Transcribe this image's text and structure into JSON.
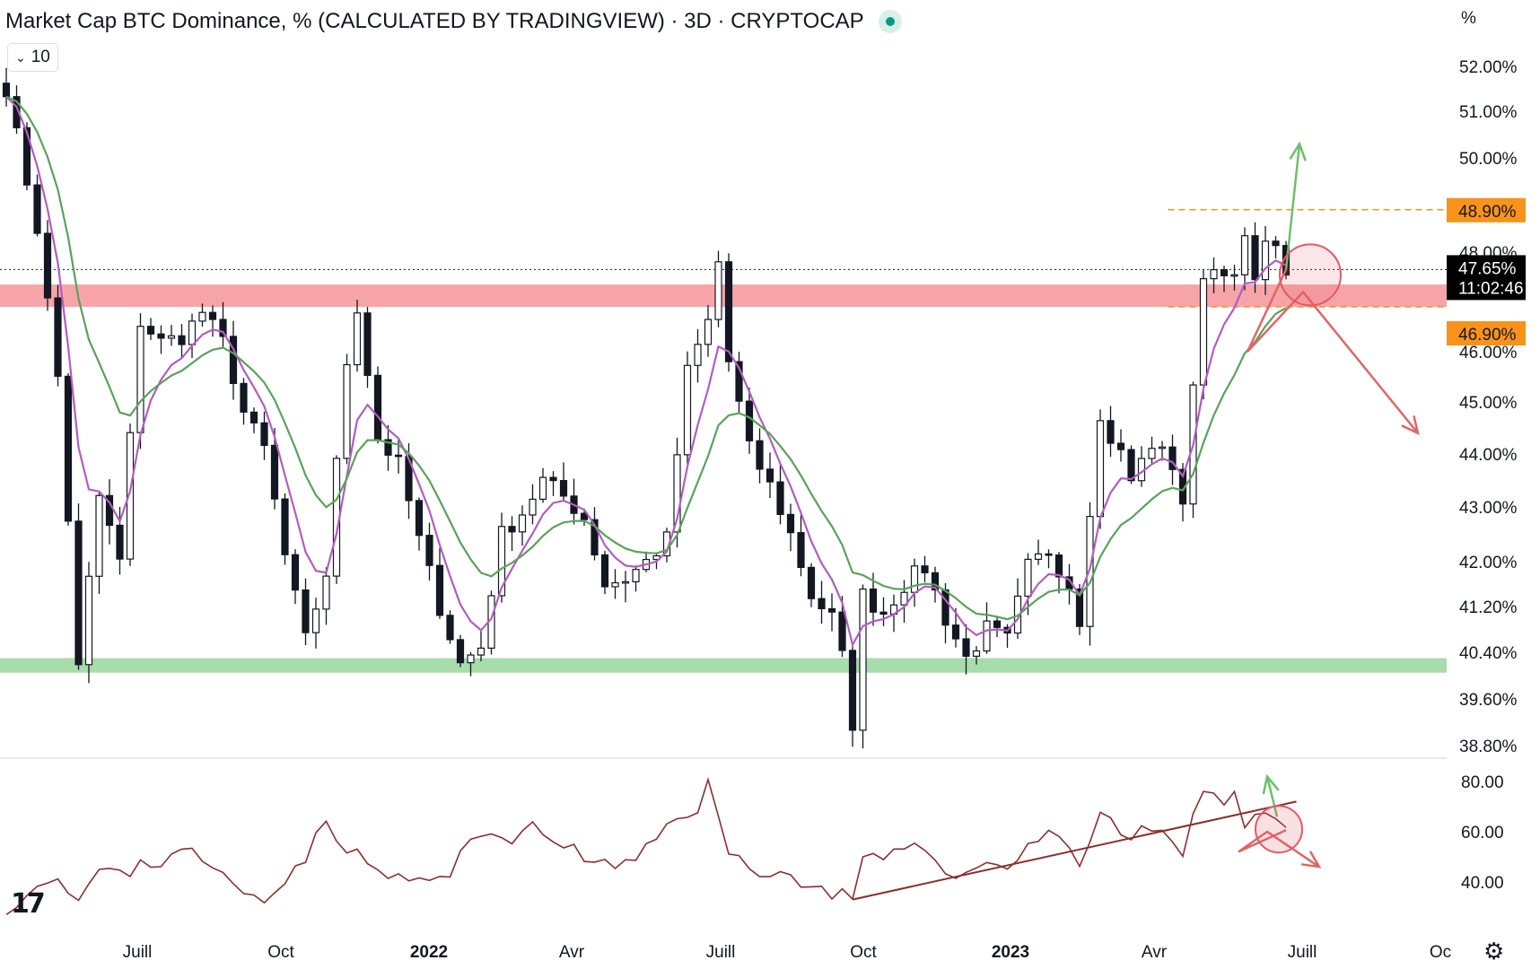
{
  "header": {
    "title": "Market Cap BTC Dominance, % (CALCULATED BY TRADINGVIEW) · 3D · CRYPTOCAP",
    "collapse_label": "10",
    "unit": "%"
  },
  "price_axis": {
    "ticks": [
      "52.00%",
      "51.00%",
      "50.00%",
      "48.00%",
      "46.00%",
      "45.00%",
      "44.00%",
      "43.00%",
      "42.00%",
      "41.20%",
      "40.40%",
      "39.60%",
      "38.80%"
    ]
  },
  "badges": {
    "top_level": "48.90%",
    "last_price": "47.65%",
    "countdown": "11:02:46",
    "bottom_level": "46.90%"
  },
  "rsi_axis": {
    "ticks": [
      "80.00",
      "60.00",
      "40.00"
    ]
  },
  "time_axis": {
    "labels": [
      "Juill",
      "Oct",
      "2022",
      "Avr",
      "Juill",
      "Oct",
      "2023",
      "Avr",
      "Juill",
      "Oc"
    ],
    "bold": [
      false,
      false,
      true,
      false,
      false,
      false,
      true,
      false,
      false,
      false
    ]
  },
  "colors": {
    "up_candle": "#131722",
    "down_candle": "#131722",
    "fast_ma": "#b05ec0",
    "slow_ma": "#5aa25a",
    "resistance_zone": "#f7a4a8",
    "support_zone": "#a8dcaa",
    "level_line": "#f7931a",
    "rsi_line": "#8b2e2e",
    "bull_arrow": "#6cc06c",
    "bear_arrow": "#e06666",
    "highlight_circle": "#e05a66"
  },
  "chart_data": [
    {
      "type": "candlestick",
      "title": "Market Cap BTC Dominance, % (CALCULATED BY TRADINGVIEW) · 3D · CRYPTOCAP",
      "timeframe": "3D",
      "xlabels": [
        "Juill",
        "Oct",
        "2022",
        "Avr",
        "Juill",
        "Oct",
        "2023",
        "Avr",
        "Juill",
        "Oc"
      ],
      "ylim": [
        38.8,
        52.4
      ],
      "y_ticks": [
        52.0,
        51.0,
        50.0,
        48.0,
        46.0,
        45.0,
        44.0,
        43.0,
        42.0,
        41.2,
        40.4,
        39.6,
        38.8
      ],
      "last_price": 47.65,
      "levels": {
        "top": 48.9,
        "bottom": 46.9
      },
      "zones": {
        "resistance": [
          46.9,
          47.35
        ],
        "support": [
          40.05,
          40.3
        ]
      },
      "close_path": [
        [
          0,
          51.5
        ],
        [
          3,
          48.5
        ],
        [
          5,
          45.5
        ],
        [
          7,
          40.1
        ],
        [
          9,
          43.2
        ],
        [
          11,
          42.0
        ],
        [
          13,
          46.6
        ],
        [
          15,
          46.2
        ],
        [
          17,
          46.3
        ],
        [
          19,
          46.8
        ],
        [
          21,
          46.2
        ],
        [
          23,
          44.8
        ],
        [
          25,
          44.1
        ],
        [
          27,
          42.1
        ],
        [
          29,
          40.6
        ],
        [
          31,
          41.8
        ],
        [
          33,
          45.8
        ],
        [
          34,
          46.9
        ],
        [
          36,
          44.3
        ],
        [
          38,
          43.8
        ],
        [
          40,
          42.4
        ],
        [
          42,
          41.2
        ],
        [
          44,
          40.2
        ],
        [
          46,
          40.5
        ],
        [
          48,
          42.5
        ],
        [
          50,
          42.9
        ],
        [
          52,
          43.5
        ],
        [
          54,
          43.2
        ],
        [
          56,
          42.8
        ],
        [
          58,
          41.6
        ],
        [
          60,
          41.7
        ],
        [
          62,
          42.0
        ],
        [
          64,
          42.4
        ],
        [
          66,
          45.6
        ],
        [
          68,
          46.6
        ],
        [
          69,
          47.8
        ],
        [
          70,
          45.8
        ],
        [
          72,
          44.1
        ],
        [
          74,
          43.4
        ],
        [
          76,
          42.5
        ],
        [
          78,
          41.4
        ],
        [
          80,
          41.0
        ],
        [
          81,
          40.3
        ],
        [
          82,
          39.2
        ],
        [
          83,
          41.4
        ],
        [
          85,
          41.1
        ],
        [
          87,
          41.6
        ],
        [
          89,
          41.9
        ],
        [
          91,
          41.0
        ],
        [
          93,
          40.3
        ],
        [
          95,
          40.8
        ],
        [
          97,
          40.6
        ],
        [
          99,
          41.9
        ],
        [
          101,
          42.2
        ],
        [
          103,
          41.6
        ],
        [
          104,
          41.0
        ],
        [
          105,
          43.0
        ],
        [
          106,
          44.6
        ],
        [
          108,
          44.0
        ],
        [
          109,
          43.5
        ],
        [
          111,
          44.2
        ],
        [
          113,
          43.8
        ],
        [
          114,
          43.1
        ],
        [
          115,
          45.2
        ],
        [
          116,
          47.6
        ],
        [
          118,
          47.7
        ],
        [
          119,
          47.4
        ],
        [
          120,
          48.3
        ],
        [
          121,
          47.3
        ],
        [
          122,
          48.4
        ],
        [
          123,
          48.0
        ],
        [
          124,
          47.65
        ]
      ],
      "annotations": {
        "bull_scenario_target": 50.3,
        "bear_scenario_path": [
          47.65,
          46.0,
          47.2,
          44.4
        ]
      }
    },
    {
      "type": "line",
      "name": "RSI",
      "ylim": [
        30,
        85
      ],
      "y_ticks": [
        80,
        60,
        40
      ],
      "rsi_path": [
        [
          0,
          30
        ],
        [
          3,
          38
        ],
        [
          5,
          44
        ],
        [
          7,
          32
        ],
        [
          9,
          45
        ],
        [
          11,
          42
        ],
        [
          13,
          47
        ],
        [
          15,
          48
        ],
        [
          17,
          55
        ],
        [
          19,
          48
        ],
        [
          21,
          42
        ],
        [
          23,
          36
        ],
        [
          25,
          34
        ],
        [
          27,
          42
        ],
        [
          29,
          50
        ],
        [
          31,
          64
        ],
        [
          33,
          54
        ],
        [
          35,
          47
        ],
        [
          37,
          42
        ],
        [
          39,
          41
        ],
        [
          41,
          40
        ],
        [
          43,
          43
        ],
        [
          45,
          56
        ],
        [
          47,
          60
        ],
        [
          49,
          58
        ],
        [
          51,
          61
        ],
        [
          53,
          57
        ],
        [
          55,
          53
        ],
        [
          57,
          47
        ],
        [
          59,
          46
        ],
        [
          61,
          48
        ],
        [
          63,
          58
        ],
        [
          65,
          66
        ],
        [
          67,
          70
        ],
        [
          68,
          79
        ],
        [
          70,
          51
        ],
        [
          72,
          46
        ],
        [
          74,
          44
        ],
        [
          76,
          42
        ],
        [
          78,
          38
        ],
        [
          80,
          36
        ],
        [
          82,
          34
        ],
        [
          83,
          48
        ],
        [
          85,
          49
        ],
        [
          87,
          52
        ],
        [
          89,
          53
        ],
        [
          91,
          46
        ],
        [
          93,
          42
        ],
        [
          95,
          48
        ],
        [
          97,
          46
        ],
        [
          99,
          55
        ],
        [
          101,
          59
        ],
        [
          103,
          56
        ],
        [
          104,
          46
        ],
        [
          105,
          58
        ],
        [
          106,
          68
        ],
        [
          108,
          60
        ],
        [
          109,
          57
        ],
        [
          111,
          62
        ],
        [
          113,
          56
        ],
        [
          114,
          51
        ],
        [
          115,
          68
        ],
        [
          116,
          75
        ],
        [
          118,
          71
        ],
        [
          119,
          73
        ],
        [
          120,
          64
        ],
        [
          121,
          68
        ],
        [
          122,
          70
        ],
        [
          123,
          65
        ],
        [
          124,
          61
        ]
      ],
      "trendline": [
        [
          82,
          33
        ],
        [
          125,
          72
        ]
      ]
    }
  ]
}
